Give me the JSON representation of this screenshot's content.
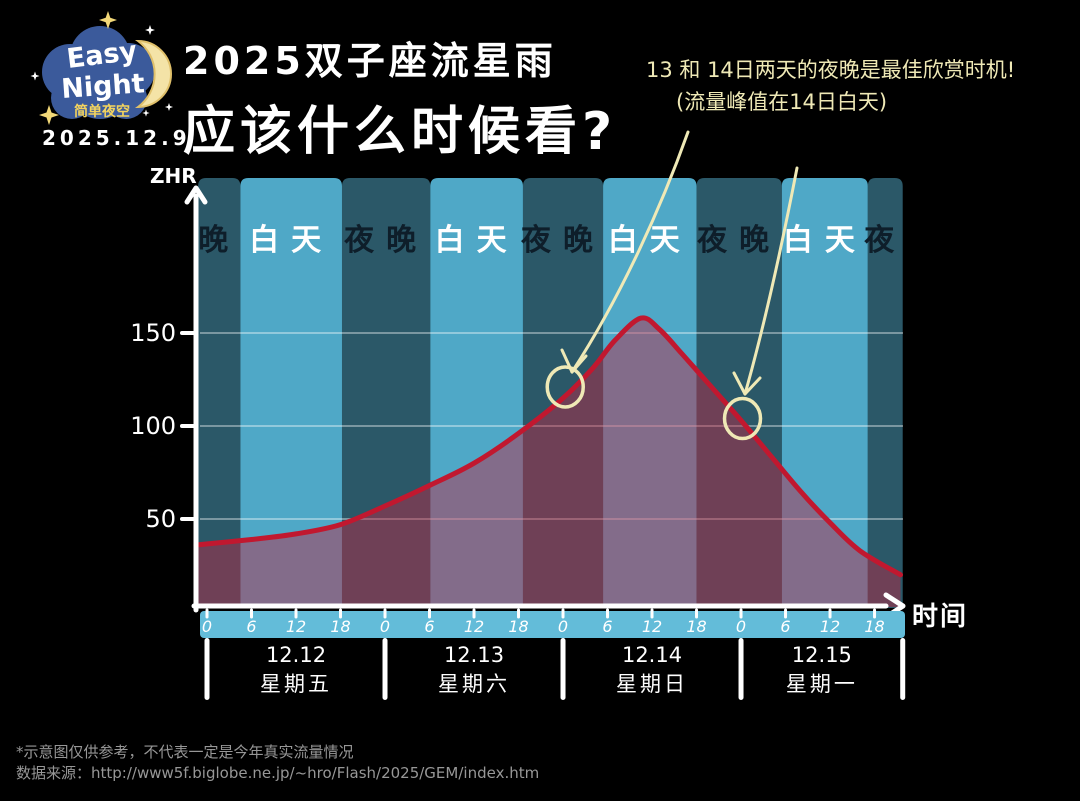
{
  "logo": {
    "brand_line1": "Easy",
    "brand_line2": "Night",
    "brand_subtitle": "简单夜空",
    "date": "2025.12.9"
  },
  "title": {
    "line1": "2025双子座流星雨",
    "line2": "应该什么时候看?"
  },
  "annotation": {
    "line1": "13 和 14日两天的夜晚是最佳欣赏时机!",
    "line2": "(流量峰值在14日白天)"
  },
  "footer": {
    "line1": "*示意图仅供参考，不代表一定是今年真实流量情况",
    "line2": "数据来源：http://www5f.biglobe.ne.jp/~hro/Flash/2025/GEM/index.htm"
  },
  "chart_data": {
    "type": "area",
    "title": "2025双子座流星雨 应该什么时候看?",
    "ylabel": "ZHR",
    "xlabel": "时间",
    "ylim": [
      0,
      165
    ],
    "y_ticks": [
      50,
      100,
      150
    ],
    "grid": true,
    "x_ticks": [
      {
        "h": 0,
        "label": "0"
      },
      {
        "h": 6,
        "label": "6"
      },
      {
        "h": 12,
        "label": "12"
      },
      {
        "h": 18,
        "label": "18"
      },
      {
        "h": 24,
        "label": "0"
      },
      {
        "h": 30,
        "label": "6"
      },
      {
        "h": 36,
        "label": "12"
      },
      {
        "h": 42,
        "label": "18"
      },
      {
        "h": 48,
        "label": "0"
      },
      {
        "h": 54,
        "label": "6"
      },
      {
        "h": 60,
        "label": "12"
      },
      {
        "h": 66,
        "label": "18"
      },
      {
        "h": 72,
        "label": "0"
      },
      {
        "h": 78,
        "label": "6"
      },
      {
        "h": 84,
        "label": "12"
      },
      {
        "h": 90,
        "label": "18"
      }
    ],
    "day_divider_hours": [
      0,
      24,
      48,
      72,
      93.8
    ],
    "days": [
      {
        "date": "12.12",
        "weekday": "星期五"
      },
      {
        "date": "12.13",
        "weekday": "星期六"
      },
      {
        "date": "12.14",
        "weekday": "星期日"
      },
      {
        "date": "12.15",
        "weekday": "星期一"
      }
    ],
    "bands": [
      {
        "label": "晚",
        "kind": "night",
        "start_h": -1.2,
        "end_h": 4.5
      },
      {
        "label": "白天",
        "kind": "day",
        "start_h": 4.5,
        "end_h": 18.2
      },
      {
        "label": "夜晚",
        "kind": "night",
        "start_h": 18.2,
        "end_h": 30.1
      },
      {
        "label": "白天",
        "kind": "day",
        "start_h": 30.1,
        "end_h": 42.6
      },
      {
        "label": "夜晚",
        "kind": "night",
        "start_h": 42.6,
        "end_h": 53.4
      },
      {
        "label": "白天",
        "kind": "day",
        "start_h": 53.4,
        "end_h": 66.0
      },
      {
        "label": "夜晚",
        "kind": "night",
        "start_h": 66.0,
        "end_h": 77.5
      },
      {
        "label": "白天",
        "kind": "day",
        "start_h": 77.5,
        "end_h": 89.1
      },
      {
        "label": "夜",
        "kind": "night",
        "start_h": 89.1,
        "end_h": 93.8
      }
    ],
    "series": [
      {
        "name": "ZHR",
        "points": [
          [
            -1.5,
            36
          ],
          [
            6,
            39
          ],
          [
            12,
            42
          ],
          [
            18,
            47
          ],
          [
            24,
            57
          ],
          [
            30,
            68
          ],
          [
            36,
            80
          ],
          [
            42,
            96
          ],
          [
            48,
            115
          ],
          [
            52,
            131
          ],
          [
            55,
            146
          ],
          [
            58.5,
            158
          ],
          [
            61,
            152
          ],
          [
            64,
            139
          ],
          [
            68,
            121
          ],
          [
            72,
            103
          ],
          [
            76,
            84
          ],
          [
            80,
            65
          ],
          [
            84,
            48
          ],
          [
            88,
            33
          ],
          [
            93.5,
            20
          ]
        ]
      }
    ],
    "peak": {
      "hour": 58.5,
      "zhr": 158,
      "note": "流量峰值在14日白天"
    },
    "annotations": [
      {
        "hour": 48.3,
        "zhr": 121
      },
      {
        "hour": 72.2,
        "zhr": 104
      }
    ],
    "colors": {
      "night_band": "#2b5868",
      "day_band": "#4fa8c7",
      "curve": "#c1182f",
      "area_fill": "rgba(195,35,65,0.45)",
      "axis": "#ffffff",
      "strip": "#63bcd9",
      "callout": "#efe9b6",
      "night_label_text": "#0e1e2a",
      "day_label_text": "#ffffff"
    }
  }
}
